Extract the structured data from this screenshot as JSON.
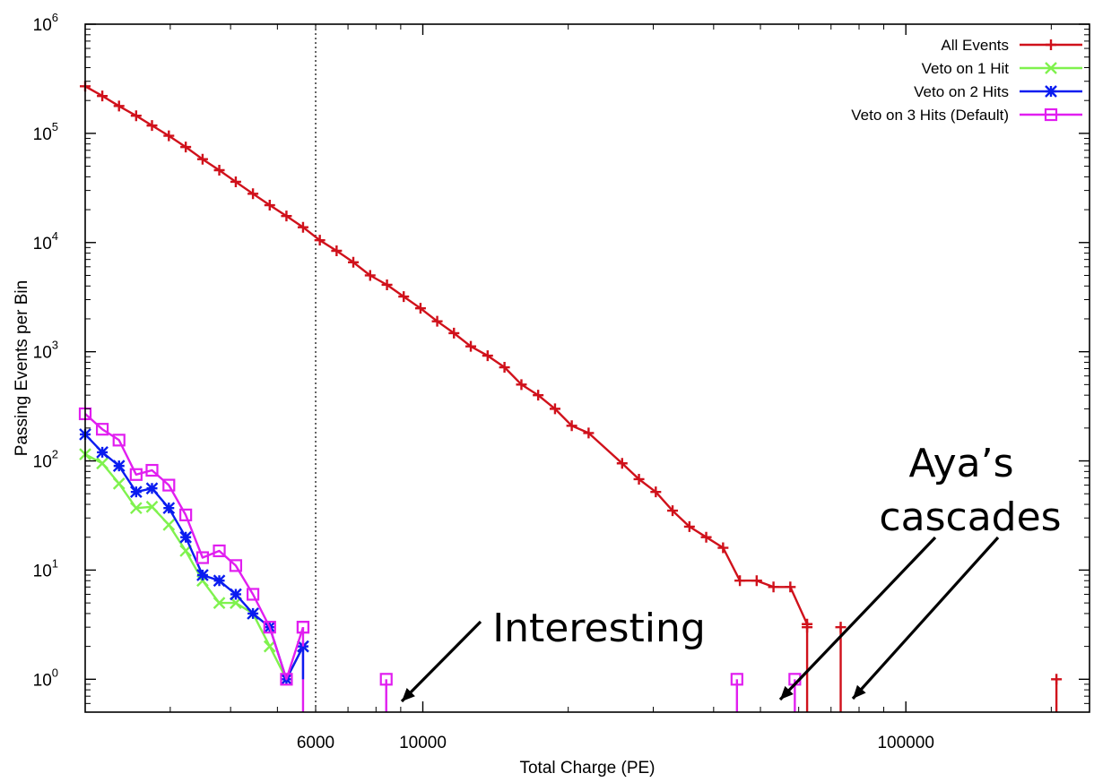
{
  "chart_data": {
    "type": "line",
    "xlabel": "Total Charge (PE)",
    "ylabel": "Passing Events per Bin",
    "x_scale": "log",
    "y_scale": "log",
    "xlim": [
      2000,
      240000
    ],
    "ylim": [
      0.5,
      1000000
    ],
    "x_tick_labels": [
      "6000",
      "10000",
      "100000"
    ],
    "x_tick_values": [
      6000,
      10000,
      100000
    ],
    "y_tick_base": "10",
    "y_tick_exponents": [
      "0",
      "1",
      "2",
      "3",
      "4",
      "5",
      "6"
    ],
    "legend_position": "top-right",
    "cut_line_x": 6000,
    "series": [
      {
        "name": "All Events",
        "color": "#d0111b",
        "marker": "plus",
        "points": [
          [
            2000,
            270000
          ],
          [
            2170,
            220000
          ],
          [
            2350,
            178000
          ],
          [
            2550,
            145000
          ],
          [
            2750,
            118000
          ],
          [
            2980,
            95000
          ],
          [
            3230,
            75000
          ],
          [
            3500,
            58000
          ],
          [
            3790,
            46000
          ],
          [
            4100,
            36000
          ],
          [
            4450,
            28000
          ],
          [
            4820,
            22000
          ],
          [
            5220,
            17500
          ],
          [
            5650,
            13800
          ],
          [
            6120,
            10500
          ],
          [
            6630,
            8400
          ],
          [
            7180,
            6600
          ],
          [
            7780,
            5000
          ],
          [
            8430,
            4100
          ],
          [
            9130,
            3200
          ],
          [
            9890,
            2500
          ],
          [
            10710,
            1900
          ],
          [
            11600,
            1480
          ],
          [
            12570,
            1120
          ],
          [
            13620,
            920
          ],
          [
            14760,
            720
          ],
          [
            16000,
            500
          ],
          [
            17330,
            400
          ],
          [
            18780,
            300
          ],
          [
            20340,
            210
          ],
          [
            22040,
            180
          ],
          [
            25860,
            95
          ],
          [
            28020,
            68
          ],
          [
            30360,
            52
          ],
          [
            32890,
            35
          ],
          [
            35640,
            25
          ],
          [
            38610,
            20
          ],
          [
            41840,
            16
          ],
          [
            45330,
            8
          ],
          [
            49110,
            8
          ],
          [
            53210,
            7
          ],
          [
            57650,
            7
          ],
          [
            62460,
            3.2
          ]
        ],
        "spikes": [
          [
            62460,
            3
          ],
          [
            73300,
            3
          ],
          [
            205000,
            1
          ]
        ]
      },
      {
        "name": "Veto on 1 Hit",
        "color": "#7ff24e",
        "marker": "x",
        "points": [
          [
            2000,
            115
          ],
          [
            2170,
            95
          ],
          [
            2350,
            62
          ],
          [
            2550,
            37
          ],
          [
            2750,
            38
          ],
          [
            2980,
            26
          ],
          [
            3230,
            15
          ],
          [
            3500,
            8
          ],
          [
            3790,
            5
          ],
          [
            4100,
            5
          ],
          [
            4450,
            4
          ],
          [
            4820,
            2
          ],
          [
            5220,
            1
          ],
          [
            5650,
            2
          ]
        ]
      },
      {
        "name": "Veto on 2 Hits",
        "color": "#0a1cf0",
        "marker": "star",
        "points": [
          [
            2000,
            175
          ],
          [
            2170,
            120
          ],
          [
            2350,
            90
          ],
          [
            2550,
            52
          ],
          [
            2750,
            56
          ],
          [
            2980,
            37
          ],
          [
            3230,
            20
          ],
          [
            3500,
            9
          ],
          [
            3790,
            8
          ],
          [
            4100,
            6
          ],
          [
            4450,
            4
          ],
          [
            4820,
            3
          ],
          [
            5220,
            1
          ],
          [
            5650,
            2
          ]
        ]
      },
      {
        "name": "Veto on 3 Hits (Default)",
        "color": "#e11ef0",
        "marker": "open-square",
        "points": [
          [
            2000,
            270
          ],
          [
            2170,
            195
          ],
          [
            2350,
            155
          ],
          [
            2550,
            75
          ],
          [
            2750,
            82
          ],
          [
            2980,
            60
          ],
          [
            3230,
            32
          ],
          [
            3500,
            13
          ],
          [
            3790,
            15
          ],
          [
            4100,
            11
          ],
          [
            4450,
            6
          ],
          [
            4820,
            3
          ],
          [
            5220,
            1
          ],
          [
            5650,
            3
          ]
        ],
        "spikes": [
          [
            5650,
            3
          ],
          [
            8400,
            1
          ],
          [
            44700,
            1
          ],
          [
            58900,
            1
          ]
        ]
      }
    ],
    "annotations": [
      {
        "text": "Interesting",
        "target_x": 8400,
        "target_y": 0.5
      },
      {
        "text": "Aya’s",
        "line": 1
      },
      {
        "text": "cascades",
        "line": 2
      }
    ]
  }
}
